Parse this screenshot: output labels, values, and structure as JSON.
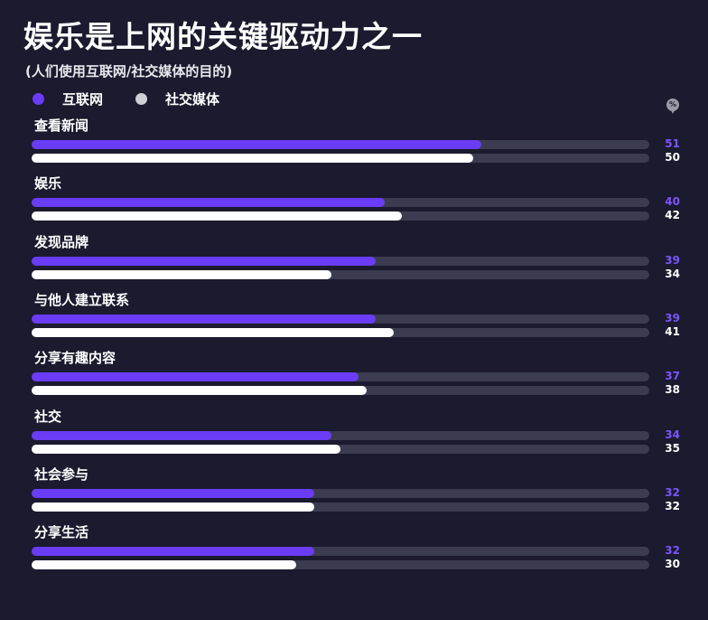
{
  "title": "娱乐是上网的关键驱动力之一",
  "subtitle": "(人们使用互联网/社交媒体的目的)",
  "unit_badge": "%",
  "colors": {
    "internet": "#6a3cf5",
    "social": "#ffffff",
    "track": "#3c3c50",
    "background": "#1b1a2e",
    "internet_value": "#7a55ff",
    "social_value": "#ffffff"
  },
  "chart_data": {
    "type": "bar",
    "orientation": "horizontal",
    "unit": "%",
    "xlim": [
      0,
      70
    ],
    "categories": [
      "查看新闻",
      "娱乐",
      "发现品牌",
      "与他人建立联系",
      "分享有趣内容",
      "社交",
      "社会参与",
      "分享生活"
    ],
    "series": [
      {
        "name": "互联网",
        "values": [
          51,
          40,
          39,
          39,
          37,
          34,
          32,
          32
        ]
      },
      {
        "name": "社交媒体",
        "values": [
          50,
          42,
          34,
          41,
          38,
          35,
          32,
          30
        ]
      }
    ],
    "legend": "top-left",
    "grid": false
  }
}
